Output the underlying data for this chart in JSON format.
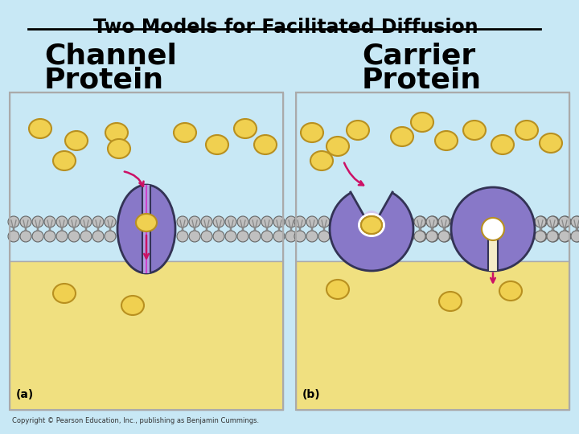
{
  "title": "Two Models for Facilitated Diffusion",
  "label_a_line1": "Channel",
  "label_a_line2": "Protein",
  "label_b_line1": "Carrier",
  "label_b_line2": "Protein",
  "footnote_a": "(a)",
  "footnote_b": "(b)",
  "copyright": "Copyright © Pearson Education, Inc., publishing as Benjamin Cummings.",
  "bg_color": "#c8e8f5",
  "panel_bg_top": "#c8e8f5",
  "panel_bg_bot": "#f0e080",
  "panel_border": "#aaaaaa",
  "membrane_head_color": "#c0c0c0",
  "membrane_head_edge": "#666666",
  "membrane_tail": "#888888",
  "protein_fill": "#8878c8",
  "protein_edge": "#333355",
  "protein_channel_line": "#cc44cc",
  "arrow_color": "#cc1166",
  "molecule_fill": "#f0d050",
  "molecule_edge": "#b89020",
  "white": "#ffffff",
  "cream": "#f5ecc8"
}
